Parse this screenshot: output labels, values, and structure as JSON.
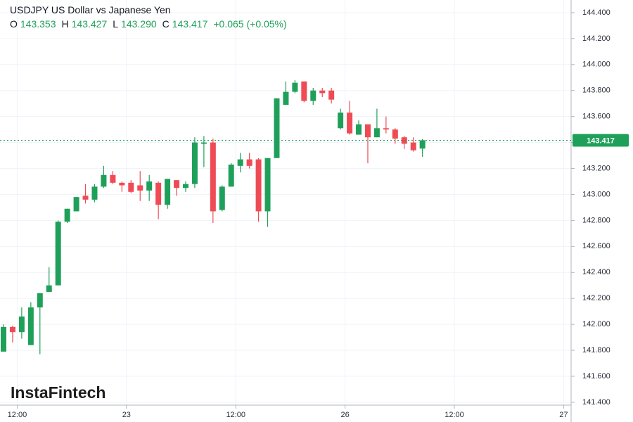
{
  "chart_data": {
    "type": "candlestick",
    "title": "USDJPY US Dollar vs Japanese Yen",
    "ohlc_legend": [
      {
        "key": "O",
        "value": "143.353"
      },
      {
        "key": "H",
        "value": "143.427"
      },
      {
        "key": "L",
        "value": "143.290"
      },
      {
        "key": "C",
        "value": "143.417"
      }
    ],
    "change": "+0.065 (+0.05%)",
    "watermark": "InstaFintech",
    "up_color": "#1fa05a",
    "down_color": "#ef4b55",
    "grid": true,
    "x": [
      0,
      1,
      2,
      3,
      4,
      5,
      6,
      7,
      8,
      9,
      10,
      11,
      12,
      13,
      14,
      15,
      16,
      17,
      18,
      19,
      20,
      21,
      22,
      23,
      24,
      25,
      26,
      27,
      28,
      29,
      30,
      31,
      32,
      33,
      34,
      35,
      36,
      37,
      38,
      39,
      40,
      41,
      42,
      43,
      44,
      45,
      46
    ],
    "open": [
      141.79,
      141.98,
      141.94,
      141.84,
      142.13,
      142.25,
      142.3,
      142.79,
      142.87,
      142.99,
      142.96,
      143.06,
      143.15,
      143.09,
      143.09,
      143.07,
      143.03,
      143.09,
      142.92,
      143.11,
      143.05,
      143.08,
      143.39,
      143.4,
      142.88,
      143.06,
      143.22,
      143.27,
      143.27,
      142.87,
      143.28,
      143.69,
      143.79,
      143.87,
      143.72,
      143.8,
      143.8,
      143.51,
      143.63,
      143.46,
      143.54,
      143.44,
      143.51,
      143.5,
      143.44,
      143.4,
      143.353
    ],
    "high": [
      142.0,
      141.99,
      142.13,
      142.17,
      142.24,
      142.44,
      142.8,
      142.89,
      142.98,
      143.08,
      143.08,
      143.22,
      143.18,
      143.1,
      143.11,
      143.18,
      143.15,
      143.1,
      143.12,
      143.11,
      143.1,
      143.44,
      143.45,
      143.43,
      143.07,
      143.24,
      143.32,
      143.32,
      143.28,
      143.28,
      143.74,
      143.87,
      143.88,
      143.87,
      143.82,
      143.82,
      143.82,
      143.66,
      143.72,
      143.57,
      143.54,
      143.66,
      143.6,
      143.51,
      143.45,
      143.44,
      143.427
    ],
    "low": [
      141.79,
      141.86,
      141.89,
      141.84,
      141.77,
      142.25,
      142.3,
      142.78,
      142.87,
      142.93,
      142.94,
      143.05,
      143.08,
      143.02,
      143.01,
      142.95,
      142.95,
      142.81,
      142.89,
      142.99,
      143.02,
      143.05,
      143.21,
      142.78,
      142.87,
      143.06,
      143.17,
      143.2,
      142.79,
      142.75,
      143.28,
      143.69,
      143.78,
      143.71,
      143.69,
      143.75,
      143.7,
      143.5,
      143.46,
      143.46,
      143.24,
      143.44,
      143.47,
      143.39,
      143.35,
      143.33,
      143.29
    ],
    "close": [
      141.98,
      141.94,
      142.06,
      142.13,
      142.24,
      142.3,
      142.79,
      142.89,
      142.98,
      142.96,
      143.06,
      143.15,
      143.09,
      143.07,
      143.02,
      143.03,
      143.1,
      142.92,
      143.12,
      143.05,
      143.08,
      143.4,
      143.4,
      142.87,
      143.06,
      143.23,
      143.27,
      143.22,
      142.87,
      143.28,
      143.74,
      143.79,
      143.86,
      143.72,
      143.8,
      143.78,
      143.73,
      143.63,
      143.47,
      143.54,
      143.44,
      143.51,
      143.5,
      143.43,
      143.39,
      143.34,
      143.417
    ],
    "last_price": {
      "value": 143.417,
      "label": "143.417"
    },
    "xlim": [
      -0.386,
      62.32
    ],
    "xticks": [
      {
        "value": 1.5,
        "label": "12:00"
      },
      {
        "value": 13.5,
        "label": "23"
      },
      {
        "value": 25.5,
        "label": "12:00"
      },
      {
        "value": 37.5,
        "label": "26"
      },
      {
        "value": 49.5,
        "label": "12:00"
      },
      {
        "value": 61.5,
        "label": "27"
      }
    ],
    "ylim": [
      141.378,
      144.497
    ],
    "yticks": [
      {
        "value": 141.4,
        "label": "141.400"
      },
      {
        "value": 141.6,
        "label": "141.600"
      },
      {
        "value": 141.8,
        "label": "141.800"
      },
      {
        "value": 142.0,
        "label": "142.000"
      },
      {
        "value": 142.2,
        "label": "142.200"
      },
      {
        "value": 142.4,
        "label": "142.400"
      },
      {
        "value": 142.6,
        "label": "142.600"
      },
      {
        "value": 142.8,
        "label": "142.800"
      },
      {
        "value": 143.0,
        "label": "143.000"
      },
      {
        "value": 143.2,
        "label": "143.200"
      },
      {
        "value": 143.4,
        "label": "143.400"
      },
      {
        "value": 143.6,
        "label": "143.600"
      },
      {
        "value": 143.8,
        "label": "143.800"
      },
      {
        "value": 144.0,
        "label": "144.000"
      },
      {
        "value": 144.2,
        "label": "144.200"
      },
      {
        "value": 144.4,
        "label": "144.400"
      }
    ]
  }
}
